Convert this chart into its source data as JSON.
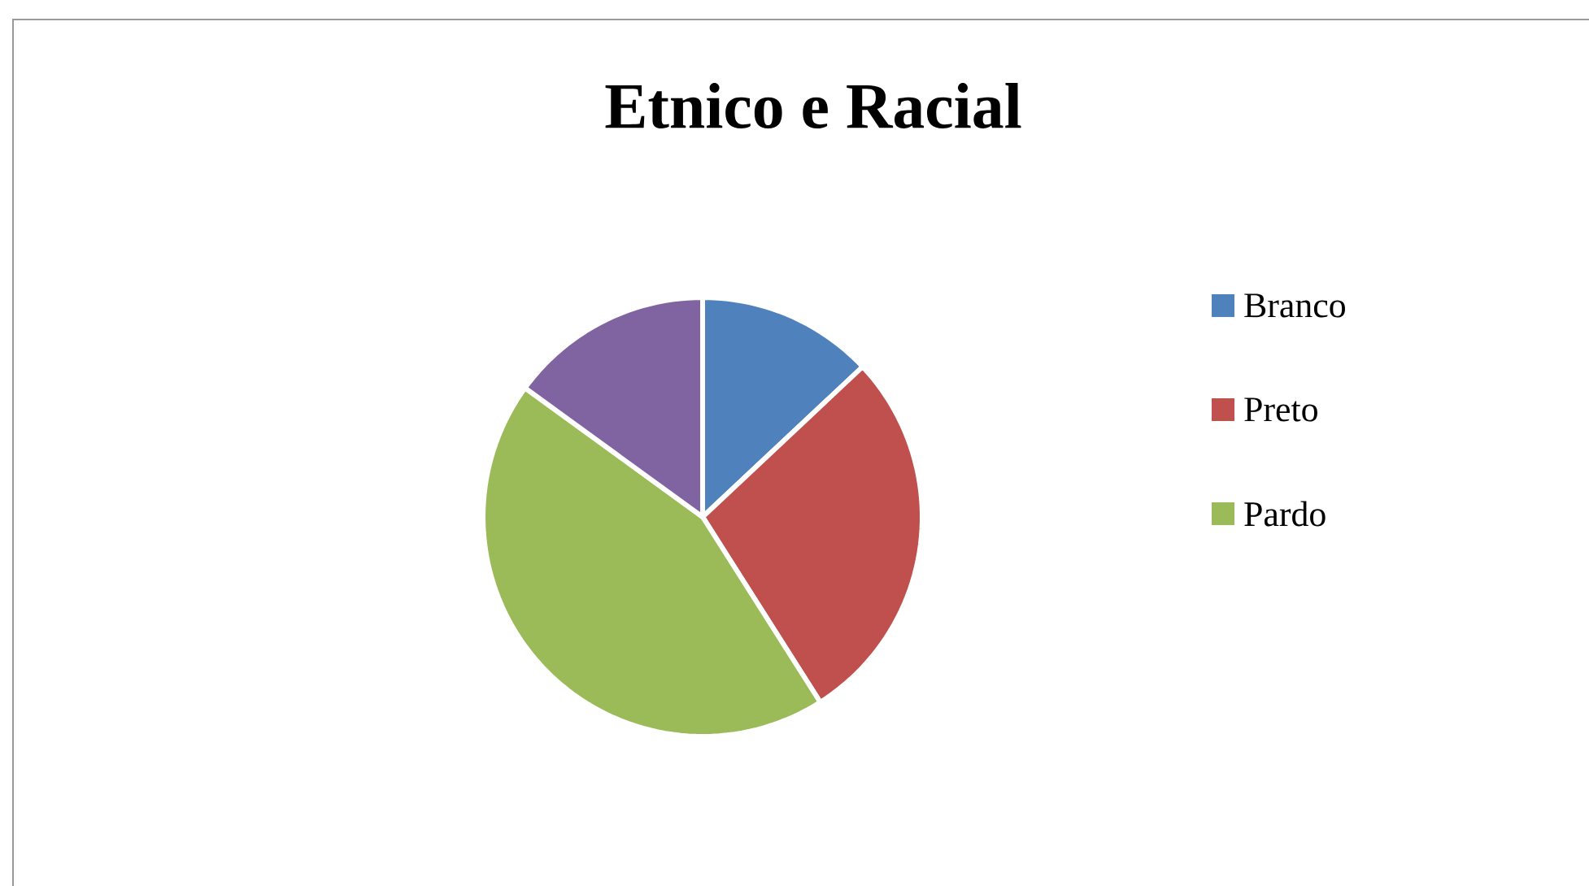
{
  "chart_data": {
    "type": "pie",
    "title": "Etnico e Racial",
    "categories": [
      "Branco",
      "Preto",
      "Pardo",
      null
    ],
    "values": [
      13,
      28,
      44,
      15
    ],
    "colors": [
      "#4f81bd",
      "#c0504d",
      "#9bbb59",
      "#8064a2"
    ],
    "legend": "right"
  }
}
